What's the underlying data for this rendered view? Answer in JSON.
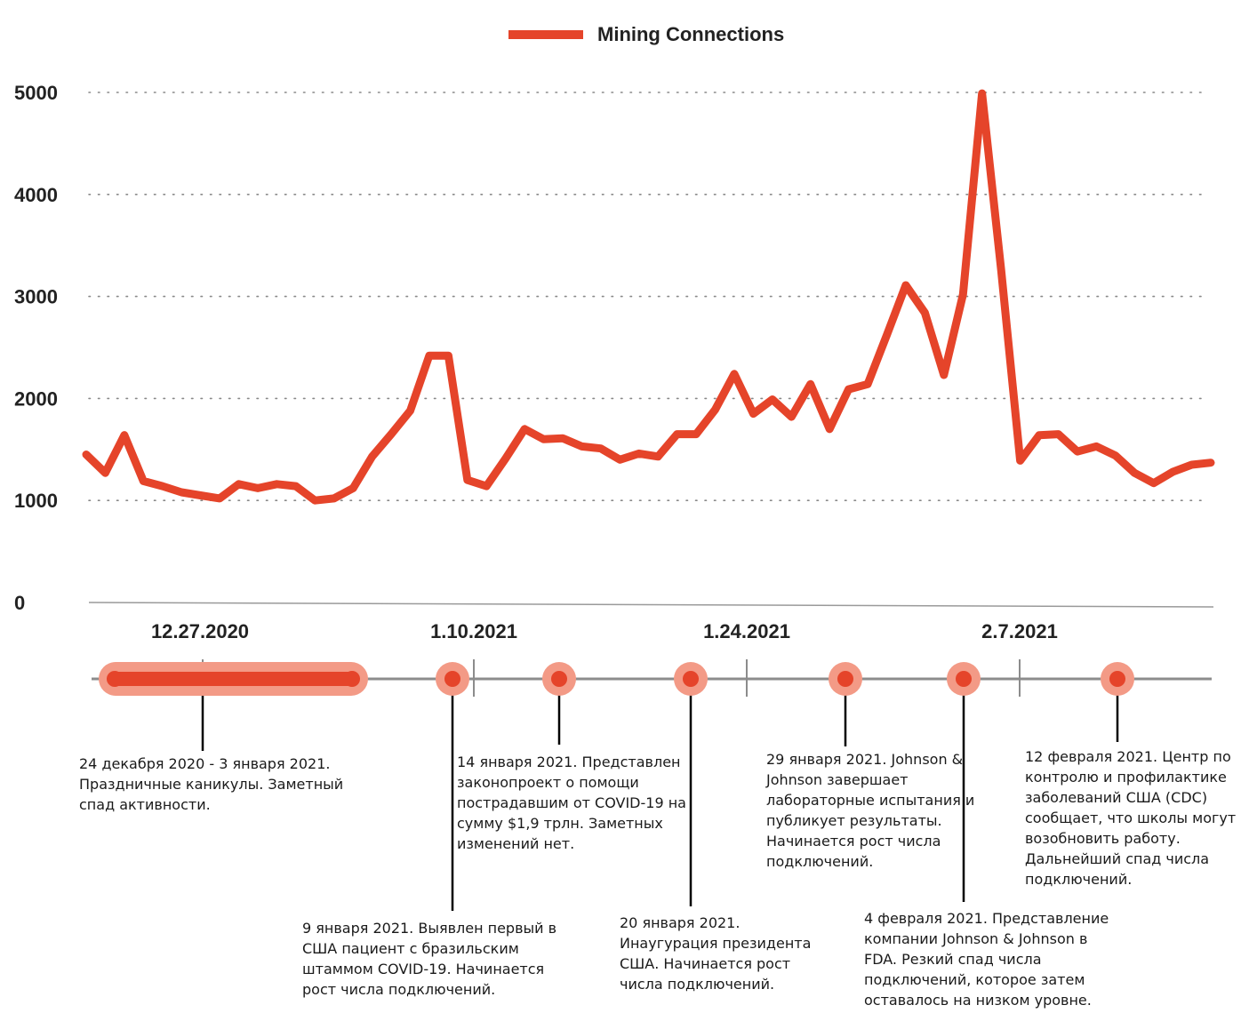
{
  "chart_data": {
    "type": "line",
    "legend": {
      "position": "top-center"
    },
    "series": [
      {
        "name": "Mining Connections",
        "color": "#E5442A",
        "values": [
          1450,
          1270,
          1640,
          1190,
          1140,
          1080,
          1050,
          1020,
          1160,
          1120,
          1160,
          1140,
          1000,
          1020,
          1120,
          1430,
          1650,
          1880,
          2420,
          2420,
          1200,
          1140,
          1410,
          1700,
          1600,
          1610,
          1530,
          1510,
          1400,
          1460,
          1430,
          1650,
          1650,
          1890,
          2240,
          1850,
          1990,
          1820,
          2140,
          1700,
          2090,
          2140,
          2620,
          3110,
          2840,
          2230,
          3020,
          4990,
          3260,
          1390,
          1640,
          1650,
          1480,
          1530,
          1440,
          1270,
          1170,
          1280,
          1350,
          1370
        ]
      }
    ],
    "y_ticks": [
      "0",
      "1000",
      "2000",
      "3000",
      "4000",
      "5000"
    ],
    "ylim": [
      0,
      5000
    ],
    "x_date_labels": [
      "12.27.2020",
      "1.10.2021",
      "1.24.2021",
      "2.7.2021"
    ],
    "grid": "horizontal dotted"
  },
  "timeline": {
    "events": [
      {
        "text": "24 декабря 2020 - 3 января 2021.\nПраздничные каникулы. Заметный\nспад активности."
      },
      {
        "text": "9 января 2021. Выявлен первый в\nСША пациент с бразильским\nштаммом COVID-19. Начинается\nрост числа подключений."
      },
      {
        "text": "14 января 2021. Представлен\nзаконопроект о помощи\nпострадавшим от COVID-19 на\nсумму $1,9 трлн. Заметных\nизменений нет."
      },
      {
        "text": "20 января 2021.\nИнаугурация президента\nСША. Начинается рост\nчисла подключений."
      },
      {
        "text": "29 января 2021. Johnson &\nJohnson завершает\nлабораторные испытания и\nпубликует результаты.\nНачинается рост числа\nподключений."
      },
      {
        "text": "4 февраля 2021. Представление\nкомпании Johnson & Johnson в\nFDA. Резкий спад числа\nподключений, которое затем\nоставалось на низком уровне."
      },
      {
        "text": "12 февраля 2021. Центр по\nконтролю и профилактике\nзаболеваний США (CDC)\nсообщает, что школы могут\nвозобновить работу.\nДальнейший спад числа\nподключений."
      }
    ]
  }
}
